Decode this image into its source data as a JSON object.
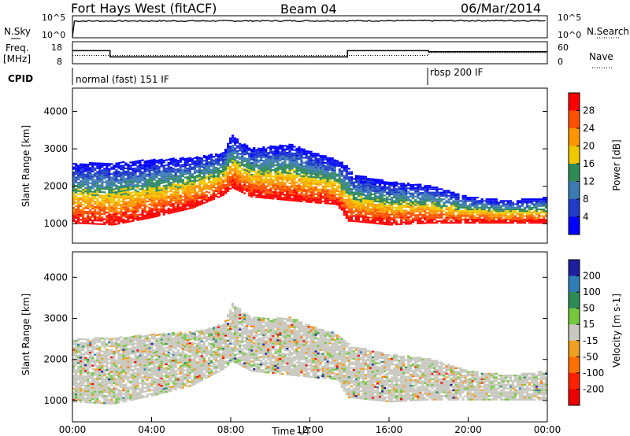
{
  "header": {
    "station": "Fort Hays West (fitACF)",
    "beam": "Beam 04",
    "date": "06/Mar/2014"
  },
  "left_labels": {
    "nsky": "N.Sky",
    "freq": "Freq.",
    "freq_unit": "[MHz]",
    "cpid": "CPID"
  },
  "right_labels": {
    "nsearch": "N.Search",
    "nave": "Nave"
  },
  "cpid_segments": [
    {
      "label": "normal (fast) 151 IF",
      "start_h": 0
    },
    {
      "label": "rbsp 200 IF",
      "start_h": 18
    }
  ],
  "chart_data": [
    {
      "type": "line",
      "panel": "noise",
      "x_unit": "UT hours",
      "left_axis": {
        "label": "N.Sky",
        "ticks": [
          "10^5",
          "10^0"
        ]
      },
      "right_axis": {
        "label": "N.Search",
        "ticks": [
          "10^5",
          "10^0"
        ]
      },
      "series": [
        {
          "name": "N.Sky",
          "x": [
            0,
            0.1,
            24
          ],
          "y_level": [
            0.0,
            0.78,
            0.8
          ]
        }
      ]
    },
    {
      "type": "line",
      "panel": "frequency",
      "x_unit": "UT hours",
      "left_axis": {
        "label": "Freq. [MHz]",
        "ticks": [
          18,
          8
        ],
        "ylim": [
          8,
          18
        ]
      },
      "right_axis": {
        "label": "Nave",
        "ticks": [
          60,
          0
        ],
        "ylim": [
          0,
          60
        ]
      },
      "series": [
        {
          "name": "Freq.",
          "x": [
            0,
            1.9,
            1.9,
            13.9,
            13.9,
            18,
            18,
            24
          ],
          "y": [
            14,
            14,
            11,
            11,
            14,
            14,
            13.5,
            13.5
          ]
        },
        {
          "name": "Nave",
          "x": [
            0,
            1.9,
            1.9,
            13.9,
            13.9,
            18,
            18,
            24
          ],
          "y": [
            22,
            22,
            22,
            22,
            22,
            22,
            30,
            30
          ]
        }
      ]
    },
    {
      "type": "heatmap",
      "panel": "power",
      "x_unit": "UT hours",
      "xlim": [
        0,
        24
      ],
      "ylabel": "Slant Range [km]",
      "ylim": [
        500,
        4600
      ],
      "yticks": [
        1000,
        2000,
        3000,
        4000
      ],
      "colorbar": {
        "label": "Power [dB]",
        "ticks": [
          28,
          24,
          20,
          16,
          12,
          8,
          4
        ],
        "colors": [
          "#ff0000",
          "#ff4f00",
          "#ff9600",
          "#f0c800",
          "#2e8b57",
          "#3c7ab4",
          "#1e3cc8",
          "#0000ff"
        ]
      },
      "bands": [
        {
          "x": [
            0,
            2,
            4,
            6,
            7.6,
            8,
            9,
            11,
            12,
            13.3,
            13.9,
            14.1,
            16,
            18,
            20,
            22,
            24
          ],
          "low": [
            1000,
            950,
            1150,
            1400,
            1750,
            1950,
            1700,
            1600,
            1550,
            1500,
            1050,
            1050,
            950,
            1000,
            1000,
            1000,
            1000
          ],
          "high": [
            2600,
            2600,
            2700,
            2750,
            2900,
            3350,
            3000,
            3100,
            2900,
            2700,
            2500,
            2300,
            2100,
            2000,
            1700,
            1600,
            1700
          ]
        }
      ]
    },
    {
      "type": "heatmap",
      "panel": "velocity",
      "x_unit": "UT hours",
      "xlim": [
        0,
        24
      ],
      "xlabel": "Time UT",
      "xticks": [
        "00:00",
        "04:00",
        "08:00",
        "12:00",
        "16:00",
        "20:00",
        "00:00"
      ],
      "ylabel": "Slant Range [km]",
      "ylim": [
        500,
        4600
      ],
      "yticks": [
        1000,
        2000,
        3000,
        4000
      ],
      "colorbar": {
        "label": "Velocity [m s-1]",
        "ticks": [
          200,
          100,
          50,
          15,
          -15,
          -50,
          -100,
          -200
        ],
        "colors": [
          "#1e1ea0",
          "#2e7db4",
          "#2e8b57",
          "#73c83c",
          "#c8c8c0",
          "#f0a020",
          "#ff7000",
          "#ff2000",
          "#ee0000"
        ]
      },
      "bands": [
        {
          "x": [
            0,
            2,
            4,
            6,
            7.6,
            8,
            9,
            11,
            12,
            13.3,
            13.9,
            14.1,
            16,
            18,
            20,
            22,
            24
          ],
          "low": [
            950,
            900,
            1100,
            1350,
            1750,
            1950,
            1700,
            1600,
            1550,
            1500,
            1050,
            1050,
            950,
            1000,
            1000,
            1000,
            1000
          ],
          "high": [
            2500,
            2500,
            2600,
            2650,
            2850,
            3350,
            3000,
            3000,
            2800,
            2600,
            2400,
            2300,
            2100,
            2000,
            1700,
            1600,
            1700
          ]
        }
      ]
    }
  ]
}
